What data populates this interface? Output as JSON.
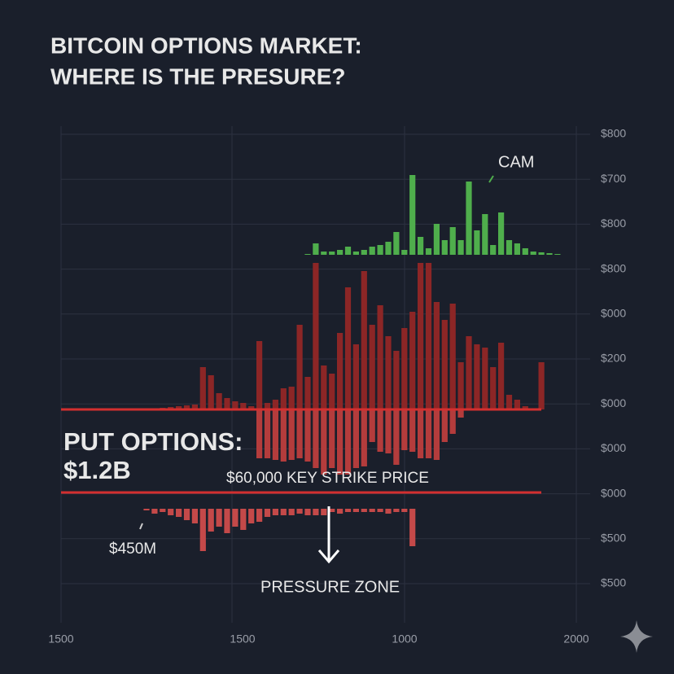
{
  "chart_data": {
    "type": "bar",
    "title_lines": [
      "BITCOIN OPTIONS MARKET:",
      "WHERE IS THE PRESURE?"
    ],
    "y_labels": [
      "$800",
      "$700",
      "$800",
      "$800",
      "$000",
      "$200",
      "$000",
      "$000",
      "$000",
      "$500",
      "$500"
    ],
    "x_labels": [
      "1500",
      "1500",
      "1000",
      "2000"
    ],
    "annotations": {
      "cam": "CAM",
      "put_title": "PUT OPTIONS:",
      "put_value": "$1.2B",
      "strike": "$60,000 KEY STRIKE PRICE",
      "small": "$450M",
      "zone": "PRESSURE ZONE"
    },
    "series": [
      {
        "color": "#4fae4c",
        "values": [
          null,
          null,
          null,
          null,
          null,
          null,
          null,
          null,
          null,
          null,
          null,
          null,
          null,
          null,
          null,
          null,
          null,
          null,
          null,
          null,
          1,
          14,
          4,
          4,
          6,
          10,
          4,
          6,
          10,
          12,
          16,
          28,
          6,
          98,
          22,
          8,
          38,
          18,
          34,
          18,
          90,
          30,
          50,
          12,
          52,
          18,
          14,
          8,
          4,
          3,
          2,
          1
        ]
      },
      {
        "color": "#8c2626",
        "values": [
          1,
          1,
          2,
          3,
          4,
          5,
          6,
          52,
          42,
          20,
          14,
          10,
          8,
          4,
          84,
          8,
          12,
          26,
          28,
          104,
          40,
          180,
          54,
          44,
          94,
          150,
          80,
          170,
          104,
          128,
          90,
          72,
          100,
          120,
          180,
          180,
          132,
          110,
          130,
          58,
          90,
          80,
          76,
          52,
          82,
          18,
          12,
          4,
          null,
          58,
          null,
          null
        ]
      },
      {
        "color": "#b43c3c",
        "values": [
          null,
          null,
          null,
          null,
          null,
          null,
          null,
          null,
          null,
          null,
          null,
          null,
          null,
          null,
          60,
          60,
          62,
          64,
          62,
          60,
          64,
          72,
          80,
          72,
          80,
          80,
          72,
          70,
          40,
          52,
          54,
          68,
          50,
          52,
          60,
          60,
          62,
          40,
          30,
          10,
          null,
          null,
          null,
          null,
          null,
          null,
          null,
          null,
          null,
          null,
          null,
          null
        ]
      },
      {
        "color": "#c44949",
        "values": [
          2,
          6,
          4,
          8,
          10,
          14,
          18,
          52,
          28,
          22,
          30,
          22,
          26,
          18,
          16,
          10,
          8,
          8,
          8,
          6,
          8,
          8,
          8,
          4,
          6,
          4,
          4,
          4,
          4,
          4,
          6,
          4,
          4,
          46,
          null,
          null,
          null,
          null,
          null,
          null,
          null,
          null,
          null,
          null,
          null,
          null,
          null,
          null,
          null,
          null,
          null,
          null
        ]
      }
    ]
  }
}
